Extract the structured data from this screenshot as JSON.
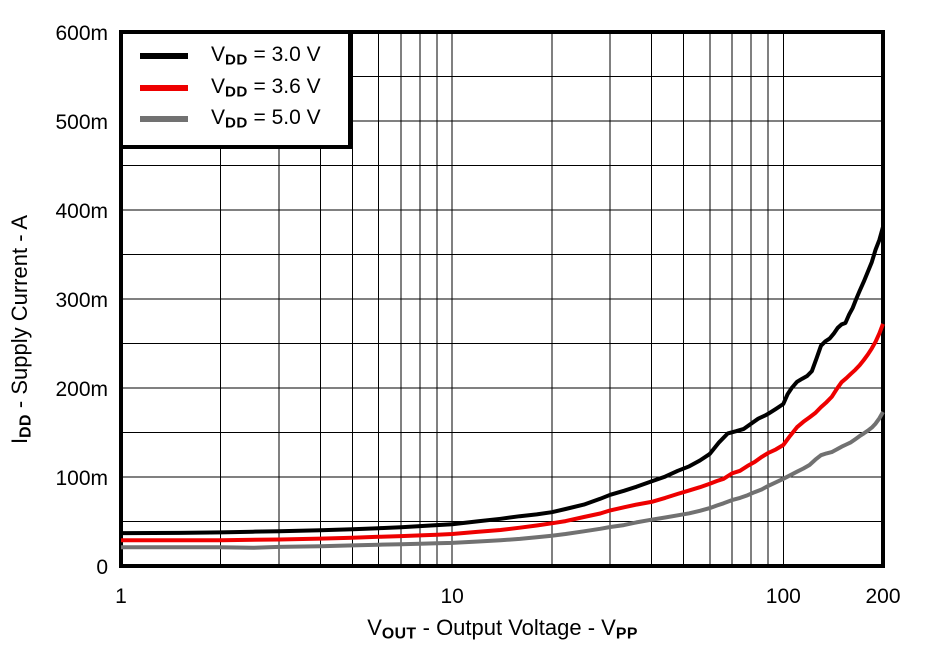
{
  "figure": {
    "background": "#ffffff",
    "frame_color": "#000000",
    "gridline_color": "#000000"
  },
  "chart_data": {
    "type": "line",
    "title": "",
    "xlabel_plain": "VOUT - Output Voltage - VPP",
    "xlabel_parts": [
      {
        "t": "V"
      },
      {
        "t": "OUT",
        "sub": true
      },
      {
        "t": " - Output Voltage - V"
      },
      {
        "t": "PP",
        "sub": true
      }
    ],
    "ylabel_plain": "IDD - Supply Current - A",
    "ylabel_parts": [
      {
        "t": "I"
      },
      {
        "t": "DD",
        "sub": true
      },
      {
        "t": " - Supply Current - A"
      }
    ],
    "x_scale": "log",
    "xlim": [
      1,
      200
    ],
    "ylim": [
      0,
      0.6
    ],
    "grid": true,
    "y_grid_step": 0.05,
    "x_gridlines": [
      2,
      3,
      4,
      5,
      6,
      7,
      8,
      9,
      10,
      20,
      30,
      40,
      50,
      60,
      70,
      80,
      90,
      100
    ],
    "x_ticks": [
      {
        "v": 1,
        "label": "1"
      },
      {
        "v": 10,
        "label": "10"
      },
      {
        "v": 100,
        "label": "100"
      },
      {
        "v": 200,
        "label": "200"
      }
    ],
    "y_ticks": [
      {
        "v": 0.0,
        "label": "0"
      },
      {
        "v": 0.1,
        "label": "100m"
      },
      {
        "v": 0.2,
        "label": "200m"
      },
      {
        "v": 0.3,
        "label": "300m"
      },
      {
        "v": 0.4,
        "label": "400m"
      },
      {
        "v": 0.5,
        "label": "500m"
      },
      {
        "v": 0.6,
        "label": "600m"
      }
    ],
    "legend": {
      "position": "top-left"
    },
    "series": [
      {
        "name": "VDD = 3.0 V",
        "label_parts": [
          {
            "t": "V"
          },
          {
            "t": "DD",
            "sub": true
          },
          {
            "t": " = 3.0 V"
          }
        ],
        "color": "#000000",
        "points": [
          [
            1,
            0.037
          ],
          [
            1.5,
            0.0372
          ],
          [
            2,
            0.0378
          ],
          [
            2.5,
            0.0385
          ],
          [
            3,
            0.039
          ],
          [
            4,
            0.0402
          ],
          [
            5,
            0.0413
          ],
          [
            6,
            0.0425
          ],
          [
            7,
            0.0436
          ],
          [
            8,
            0.0448
          ],
          [
            9,
            0.046
          ],
          [
            10,
            0.047
          ],
          [
            12,
            0.0502
          ],
          [
            14,
            0.053
          ],
          [
            16,
            0.056
          ],
          [
            18,
            0.058
          ],
          [
            20,
            0.0605
          ],
          [
            22,
            0.064
          ],
          [
            25,
            0.069
          ],
          [
            28,
            0.0755
          ],
          [
            30,
            0.08
          ],
          [
            33,
            0.0845
          ],
          [
            36,
            0.089
          ],
          [
            40,
            0.095
          ],
          [
            44,
            0.1005
          ],
          [
            48,
            0.107
          ],
          [
            52,
            0.112
          ],
          [
            56,
            0.1185
          ],
          [
            60,
            0.126
          ],
          [
            64,
            0.139
          ],
          [
            68,
            0.149
          ],
          [
            72,
            0.1515
          ],
          [
            76,
            0.154
          ],
          [
            80,
            0.16
          ],
          [
            84,
            0.1655
          ],
          [
            88,
            0.169
          ],
          [
            90,
            0.171
          ],
          [
            95,
            0.1765
          ],
          [
            100,
            0.182
          ],
          [
            103,
            0.193
          ],
          [
            106,
            0.2
          ],
          [
            110,
            0.207
          ],
          [
            114,
            0.2105
          ],
          [
            118,
            0.2135
          ],
          [
            122,
            0.219
          ],
          [
            126,
            0.2335
          ],
          [
            130,
            0.2475
          ],
          [
            134,
            0.2525
          ],
          [
            138,
            0.2555
          ],
          [
            142,
            0.261
          ],
          [
            146,
            0.2675
          ],
          [
            150,
            0.2715
          ],
          [
            154,
            0.273
          ],
          [
            158,
            0.2825
          ],
          [
            162,
            0.29
          ],
          [
            166,
            0.3
          ],
          [
            170,
            0.309
          ],
          [
            175,
            0.3195
          ],
          [
            180,
            0.3305
          ],
          [
            185,
            0.3415
          ],
          [
            190,
            0.3555
          ],
          [
            195,
            0.3665
          ],
          [
            200,
            0.381
          ]
        ]
      },
      {
        "name": "VDD = 3.6 V",
        "label_parts": [
          {
            "t": "V"
          },
          {
            "t": "DD",
            "sub": true
          },
          {
            "t": " = 3.6 V"
          }
        ],
        "color": "#ee0000",
        "points": [
          [
            1,
            0.029
          ],
          [
            2,
            0.029
          ],
          [
            3,
            0.0298
          ],
          [
            4,
            0.0308
          ],
          [
            5,
            0.0318
          ],
          [
            6,
            0.0328
          ],
          [
            7,
            0.0336
          ],
          [
            8,
            0.0344
          ],
          [
            9,
            0.0352
          ],
          [
            10,
            0.036
          ],
          [
            12,
            0.0385
          ],
          [
            14,
            0.0405
          ],
          [
            16,
            0.043
          ],
          [
            18,
            0.0455
          ],
          [
            20,
            0.048
          ],
          [
            22,
            0.0505
          ],
          [
            25,
            0.055
          ],
          [
            28,
            0.059
          ],
          [
            30,
            0.0625
          ],
          [
            33,
            0.066
          ],
          [
            36,
            0.069
          ],
          [
            40,
            0.072
          ],
          [
            44,
            0.0765
          ],
          [
            48,
            0.081
          ],
          [
            52,
            0.085
          ],
          [
            56,
            0.0885
          ],
          [
            60,
            0.0925
          ],
          [
            63,
            0.0955
          ],
          [
            66,
            0.098
          ],
          [
            70,
            0.104
          ],
          [
            74,
            0.107
          ],
          [
            78,
            0.1125
          ],
          [
            82,
            0.117
          ],
          [
            86,
            0.1225
          ],
          [
            90,
            0.127
          ],
          [
            95,
            0.131
          ],
          [
            100,
            0.136
          ],
          [
            105,
            0.1465
          ],
          [
            110,
            0.156
          ],
          [
            115,
            0.162
          ],
          [
            120,
            0.167
          ],
          [
            125,
            0.172
          ],
          [
            130,
            0.1785
          ],
          [
            135,
            0.184
          ],
          [
            140,
            0.19
          ],
          [
            145,
            0.199
          ],
          [
            150,
            0.2065
          ],
          [
            155,
            0.211
          ],
          [
            160,
            0.216
          ],
          [
            165,
            0.2205
          ],
          [
            170,
            0.2255
          ],
          [
            175,
            0.2315
          ],
          [
            180,
            0.2375
          ],
          [
            185,
            0.2445
          ],
          [
            190,
            0.252
          ],
          [
            195,
            0.2615
          ],
          [
            200,
            0.272
          ]
        ]
      },
      {
        "name": "VDD = 5.0 V",
        "label_parts": [
          {
            "t": "V"
          },
          {
            "t": "DD",
            "sub": true
          },
          {
            "t": " = 5.0 V"
          }
        ],
        "color": "#717171",
        "points": [
          [
            1,
            0.021
          ],
          [
            2,
            0.021
          ],
          [
            2.5,
            0.0205
          ],
          [
            3,
            0.0215
          ],
          [
            4,
            0.0222
          ],
          [
            5,
            0.0232
          ],
          [
            6,
            0.0239
          ],
          [
            7,
            0.0245
          ],
          [
            8,
            0.025
          ],
          [
            9,
            0.0255
          ],
          [
            10,
            0.026
          ],
          [
            12,
            0.0275
          ],
          [
            14,
            0.029
          ],
          [
            16,
            0.0305
          ],
          [
            18,
            0.0322
          ],
          [
            20,
            0.034
          ],
          [
            22,
            0.036
          ],
          [
            25,
            0.039
          ],
          [
            28,
            0.0418
          ],
          [
            30,
            0.0438
          ],
          [
            33,
            0.046
          ],
          [
            36,
            0.049
          ],
          [
            40,
            0.052
          ],
          [
            44,
            0.0545
          ],
          [
            48,
            0.057
          ],
          [
            52,
            0.0592
          ],
          [
            56,
            0.062
          ],
          [
            60,
            0.065
          ],
          [
            63,
            0.068
          ],
          [
            66,
            0.0705
          ],
          [
            70,
            0.074
          ],
          [
            74,
            0.0765
          ],
          [
            78,
            0.0795
          ],
          [
            82,
            0.083
          ],
          [
            86,
            0.086
          ],
          [
            90,
            0.09
          ],
          [
            95,
            0.094
          ],
          [
            100,
            0.098
          ],
          [
            105,
            0.102
          ],
          [
            110,
            0.106
          ],
          [
            115,
            0.1095
          ],
          [
            120,
            0.1135
          ],
          [
            125,
            0.1195
          ],
          [
            130,
            0.1245
          ],
          [
            135,
            0.1265
          ],
          [
            140,
            0.128
          ],
          [
            145,
            0.131
          ],
          [
            150,
            0.134
          ],
          [
            155,
            0.1365
          ],
          [
            160,
            0.139
          ],
          [
            165,
            0.1425
          ],
          [
            170,
            0.146
          ],
          [
            175,
            0.149
          ],
          [
            180,
            0.152
          ],
          [
            185,
            0.1555
          ],
          [
            190,
            0.16
          ],
          [
            195,
            0.166
          ],
          [
            200,
            0.173
          ]
        ]
      }
    ]
  }
}
